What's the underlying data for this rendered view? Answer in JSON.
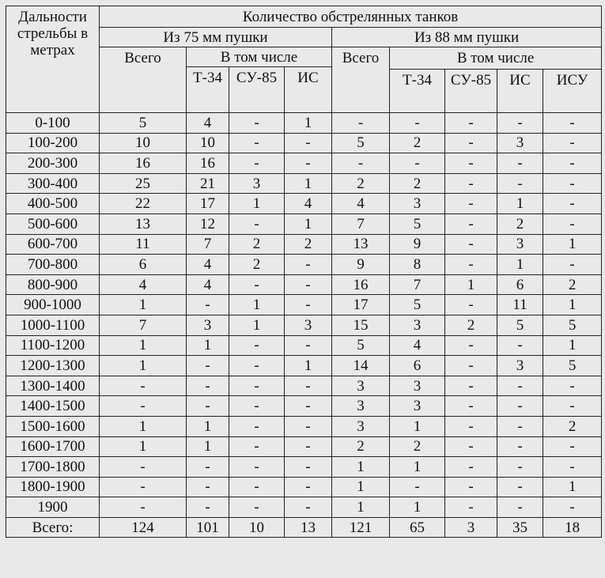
{
  "header": {
    "range_label": "Дальности стрельбы в метрах",
    "main_title": "Количество обстрелянных танков",
    "gun75": {
      "label": "Из 75 мм пушки",
      "total": "Всего",
      "including": "В том числе",
      "sub": [
        "Т-34",
        "СУ-85",
        "ИС"
      ]
    },
    "gun88": {
      "label": "Из 88 мм пушки",
      "total": "Всего",
      "including": "В том числе",
      "sub": [
        "Т-34",
        "СУ-85",
        "ИС",
        "ИСУ"
      ]
    }
  },
  "rows": [
    [
      "0-100",
      "5",
      "4",
      "-",
      "1",
      "-",
      "-",
      "-",
      "-",
      "-"
    ],
    [
      "100-200",
      "10",
      "10",
      "-",
      "-",
      "5",
      "2",
      "-",
      "3",
      "-"
    ],
    [
      "200-300",
      "16",
      "16",
      "-",
      "-",
      "-",
      "-",
      "-",
      "-",
      "-"
    ],
    [
      "300-400",
      "25",
      "21",
      "3",
      "1",
      "2",
      "2",
      "-",
      "-",
      "-"
    ],
    [
      "400-500",
      "22",
      "17",
      "1",
      "4",
      "4",
      "3",
      "-",
      "1",
      "-"
    ],
    [
      "500-600",
      "13",
      "12",
      "-",
      "1",
      "7",
      "5",
      "-",
      "2",
      "-"
    ],
    [
      "600-700",
      "11",
      "7",
      "2",
      "2",
      "13",
      "9",
      "-",
      "3",
      "1"
    ],
    [
      "700-800",
      "6",
      "4",
      "2",
      "-",
      "9",
      "8",
      "-",
      "1",
      "-"
    ],
    [
      "800-900",
      "4",
      "4",
      "-",
      "-",
      "16",
      "7",
      "1",
      "6",
      "2"
    ],
    [
      "900-1000",
      "1",
      "-",
      "1",
      "-",
      "17",
      "5",
      "-",
      "11",
      "1"
    ],
    [
      "1000-1100",
      "7",
      "3",
      "1",
      "3",
      "15",
      "3",
      "2",
      "5",
      "5"
    ],
    [
      "1100-1200",
      "1",
      "1",
      "-",
      "-",
      "5",
      "4",
      "-",
      "-",
      "1"
    ],
    [
      "1200-1300",
      "1",
      "-",
      "-",
      "1",
      "14",
      "6",
      "-",
      "3",
      "5"
    ],
    [
      "1300-1400",
      "-",
      "-",
      "-",
      "-",
      "3",
      "3",
      "-",
      "-",
      "-"
    ],
    [
      "1400-1500",
      "-",
      "-",
      "-",
      "-",
      "3",
      "3",
      "-",
      "-",
      "-"
    ],
    [
      "1500-1600",
      "1",
      "1",
      "-",
      "-",
      "3",
      "1",
      "-",
      "-",
      "2"
    ],
    [
      "1600-1700",
      "1",
      "1",
      "-",
      "-",
      "2",
      "2",
      "-",
      "-",
      "-"
    ],
    [
      "1700-1800",
      "-",
      "-",
      "-",
      "-",
      "1",
      "1",
      "-",
      "-",
      "-"
    ],
    [
      "1800-1900",
      "-",
      "-",
      "-",
      "-",
      "1",
      "-",
      "-",
      "-",
      "1"
    ],
    [
      "1900",
      "-",
      "-",
      "-",
      "-",
      "1",
      "1",
      "-",
      "-",
      "-"
    ],
    [
      "Всего:",
      "124",
      "101",
      "10",
      "13",
      "121",
      "65",
      "3",
      "35",
      "18"
    ]
  ]
}
